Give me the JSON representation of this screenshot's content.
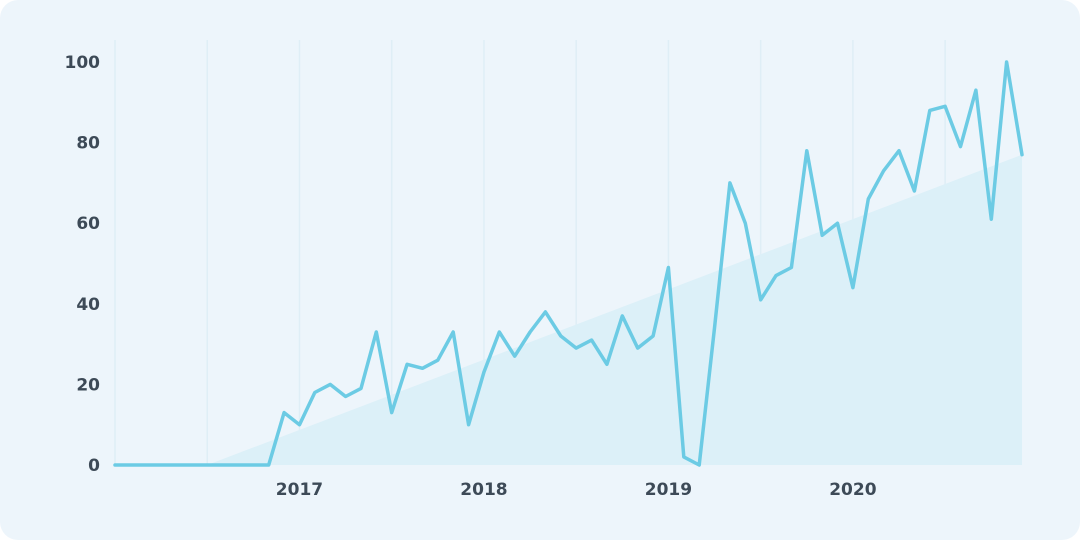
{
  "chart_data": {
    "type": "line",
    "title": "",
    "xlabel": "",
    "ylabel": "",
    "ylim": [
      0,
      100
    ],
    "y_ticks": [
      "0",
      "20",
      "40",
      "60",
      "80",
      "100"
    ],
    "x_ticks": [
      {
        "label": "2017",
        "date": "2017-01"
      },
      {
        "label": "2018",
        "date": "2018-01"
      },
      {
        "label": "2019",
        "date": "2019-01"
      },
      {
        "label": "2020",
        "date": "2020-01"
      }
    ],
    "x_range": [
      "2016-01",
      "2020-12"
    ],
    "grid": "vertical",
    "legend": "none",
    "series": [
      {
        "color": "#6ccbe4",
        "trend_fill": "#dcf0f8",
        "x": [
          "2016-01",
          "2016-02",
          "2016-03",
          "2016-04",
          "2016-05",
          "2016-06",
          "2016-07",
          "2016-08",
          "2016-09",
          "2016-10",
          "2016-11",
          "2016-12",
          "2017-01",
          "2017-02",
          "2017-03",
          "2017-04",
          "2017-05",
          "2017-06",
          "2017-07",
          "2017-08",
          "2017-09",
          "2017-10",
          "2017-11",
          "2017-12",
          "2018-01",
          "2018-02",
          "2018-03",
          "2018-04",
          "2018-05",
          "2018-06",
          "2018-07",
          "2018-08",
          "2018-09",
          "2018-10",
          "2018-11",
          "2018-12",
          "2019-01",
          "2019-02",
          "2019-03",
          "2019-04",
          "2019-05",
          "2019-06",
          "2019-07",
          "2019-08",
          "2019-09",
          "2019-10",
          "2019-11",
          "2019-12",
          "2020-01",
          "2020-02",
          "2020-03",
          "2020-04",
          "2020-05",
          "2020-06",
          "2020-07",
          "2020-08",
          "2020-09",
          "2020-10",
          "2020-11",
          "2020-12"
        ],
        "values": [
          0,
          0,
          0,
          0,
          0,
          0,
          0,
          0,
          0,
          0,
          0,
          13,
          10,
          18,
          20,
          17,
          19,
          33,
          13,
          25,
          24,
          26,
          33,
          10,
          23,
          33,
          27,
          33,
          38,
          32,
          29,
          31,
          25,
          37,
          29,
          32,
          49,
          2,
          0,
          34,
          70,
          60,
          41,
          47,
          49,
          78,
          57,
          60,
          44,
          66,
          73,
          78,
          68,
          88,
          89,
          79,
          93,
          61,
          100,
          77
        ],
        "trend": {
          "start": [
            "2016-07",
            0
          ],
          "end": [
            "2020-12",
            77
          ]
        }
      }
    ]
  }
}
